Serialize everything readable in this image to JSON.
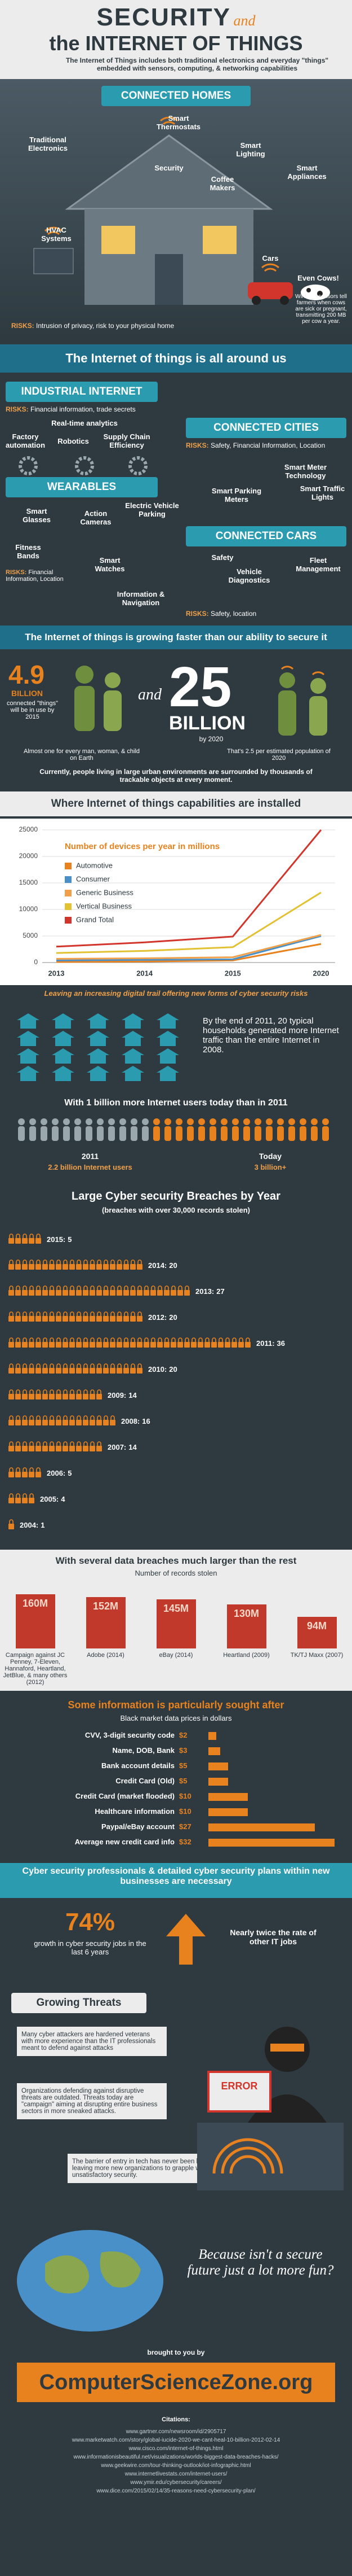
{
  "header": {
    "title_security": "SECURITY",
    "title_and": "and",
    "title_iot": "the INTERNET OF THINGS",
    "subtitle": "The Internet of Things includes both traditional electronics and everyday \"things\" embedded with sensors, computing, & networking capabilities"
  },
  "connected_homes": {
    "heading": "CONNECTED HOMES",
    "items": [
      "Traditional Electronics",
      "Smart Thermostats",
      "Security",
      "Smart Lighting",
      "Coffee Makers",
      "Smart Appliances",
      "HVAC Systems",
      "Cars",
      "Even Cows!"
    ],
    "cow_note": "Wireless sensors tell farmers when cows are sick or pregnant, transmitting 200 MB per cow a year.",
    "risks_label": "RISKS:",
    "risks": "Intrusion of privacy, risk to your physical home"
  },
  "banner_around": "The Internet of things is all around us",
  "industrial": {
    "heading": "INDUSTRIAL INTERNET",
    "risks_label": "RISKS:",
    "risks": "Financial information, trade secrets",
    "items": [
      "Real-time analytics",
      "Factory automation",
      "Robotics",
      "Supply Chain Efficiency"
    ]
  },
  "cities": {
    "heading": "CONNECTED CITIES",
    "risks_label": "RISKS:",
    "risks": "Safety, Financial Information, Location",
    "items": [
      "Smart Meter Technology",
      "Smart Parking Meters",
      "Smart Traffic Lights"
    ]
  },
  "wearables": {
    "heading": "WEARABLES",
    "items": [
      "Smart Glasses",
      "Action Cameras",
      "Electric Vehicle Parking",
      "Fitness Bands",
      "Smart Watches"
    ],
    "risks_label": "RISKS:",
    "risks": "Financial Information, Location"
  },
  "cars": {
    "heading": "CONNECTED CARS",
    "items": [
      "Safety",
      "Vehicle Diagnostics",
      "Fleet Management",
      "Information & Navigation"
    ],
    "risks_label": "RISKS:",
    "risks": "Safety, location"
  },
  "banner_growing": "The Internet of things is growing faster than our ability to secure it",
  "growth": {
    "left_number": "4.9",
    "left_unit": "BILLION",
    "left_caption": "connected \"things\" will be in use by 2015",
    "and": "and",
    "right_number": "25",
    "right_unit": "BILLION",
    "right_caption": "by 2020",
    "left_note": "Almost one for every man, woman, & child on Earth",
    "right_note": "That's 2.5 per estimated population of 2020",
    "urban_note": "Currently, people living in large urban environments are surrounded by thousands of trackable objects at every moment."
  },
  "banner_installed": "Where Internet of things capabilities are installed",
  "chart_data": [
    {
      "type": "line",
      "title": "Number of devices per year in millions",
      "categories": [
        "2013",
        "2014",
        "2015",
        "2020"
      ],
      "ylim": [
        0,
        25000
      ],
      "yticks": [
        0,
        5000,
        10000,
        15000,
        20000,
        25000
      ],
      "grid": true,
      "series": [
        {
          "name": "Automotive",
          "color": "#e8821e",
          "values": [
            100,
            200,
            400,
            3500
          ]
        },
        {
          "name": "Consumer",
          "color": "#4a90c8",
          "values": [
            400,
            500,
            600,
            5000
          ]
        },
        {
          "name": "Generic Business",
          "color": "#f0a04a",
          "values": [
            700,
            800,
            1000,
            5200
          ]
        },
        {
          "name": "Vertical Business",
          "color": "#e2c232",
          "values": [
            1800,
            2200,
            2900,
            13200
          ]
        },
        {
          "name": "Grand Total",
          "color": "#d2352b",
          "values": [
            3000,
            3800,
            4900,
            25000
          ]
        }
      ]
    },
    {
      "type": "pictograph",
      "title": "Large Cyber security Breaches by Year",
      "subtitle": "(breaches with over 30,000 records stolen)",
      "categories": [
        "2015:",
        "2014:",
        "2013:",
        "2012:",
        "2011:",
        "2010:",
        "2009:",
        "2008:",
        "2007:",
        "2006:",
        "2005:",
        "2004:"
      ],
      "values": [
        5,
        20,
        27,
        20,
        36,
        20,
        14,
        16,
        14,
        5,
        4,
        1
      ],
      "color": "#e8821e"
    },
    {
      "type": "bar",
      "title": "With several data breaches much larger than the rest",
      "subtitle": "Number of records stolen",
      "categories": [
        "Campaign against JC Penney, 7-Eleven, Hannaford, Heartland, JetBlue, & many others (2012)",
        "Adobe (2014)",
        "eBay (2014)",
        "Heartland (2009)",
        "TK/TJ Maxx (2007)"
      ],
      "values": [
        160,
        152,
        145,
        130,
        94
      ],
      "value_labels": [
        "160M",
        "152M",
        "145M",
        "130M",
        "94M"
      ],
      "color": "#c0392b"
    },
    {
      "type": "hbar",
      "title": "Some information is particularly sought after",
      "subtitle": "Black market data prices in dollars",
      "categories": [
        "CVV, 3-digit security code",
        "Name, DOB, Bank",
        "Bank account details",
        "Credit Card (Old)",
        "Credit Card (market flooded)",
        "Healthcare information",
        "Paypal/eBay account",
        "Average new credit card info"
      ],
      "values": [
        2,
        3,
        5,
        5,
        10,
        10,
        27,
        32
      ],
      "value_labels": [
        "$2",
        "$3",
        "$5",
        "$5",
        "$10",
        "$10",
        "$27",
        "$32"
      ],
      "color": "#e8821e"
    }
  ],
  "trail": "Leaving an increasing digital trail offering new forms of cyber security risks",
  "households": "By the end of 2011, 20 typical households generated more Internet traffic than the entire Internet in 2008.",
  "users": {
    "heading": "With 1 billion more Internet users today than in 2011",
    "then_label": "2011",
    "then_value": "2.2 billion Internet users",
    "now_label": "Today",
    "now_value": "3 billion+"
  },
  "professionals": {
    "heading": "Cyber security professionals & detailed cyber security plans within new businesses are necessary",
    "stat_1": "74%",
    "stat_1_text": "growth in cyber security jobs in the last 6 years",
    "stat_2_text": "Nearly twice the rate of other IT jobs"
  },
  "threats": {
    "heading": "Growing Threats",
    "items": [
      "Many cyber attackers are hardened veterans with more experience than the IT professionals meant to defend against attacks",
      "Organizations defending against disruptive threats are outdated. Threats today are \"campaign\" aiming at disrupting entire business sectors in more sneaked attacks.",
      "The barrier of entry in tech has never been lower, leaving more new organizations to grapple with unsatisfactory security."
    ],
    "error": "ERROR"
  },
  "closing": "Because isn't a secure future just a lot more fun?",
  "footer": {
    "brought": "brought to you by",
    "brand": "ComputerScienceZone.org",
    "citations_label": "Citations:",
    "citations": [
      "www.gartner.com/newsroom/id/2905717",
      "www.marketwatch.com/story/global-iucide-2020-we-cant-heal-10-billion-2012-02-14",
      "www.cisco.com/internet-of-things.html",
      "www.informationisbeautiful.net/visualizations/worlds-biggest-data-breaches-hacks/",
      "www.geekwire.com/tour-thinking-outlook/iot-infographic.html",
      "www.internetlivestats.com/internet-users/",
      "www.ymir.edu/cybersecurity/careers/",
      "www.dice.com/2015/02/14/35-reasons-need-cybersecurity-plan/"
    ]
  }
}
